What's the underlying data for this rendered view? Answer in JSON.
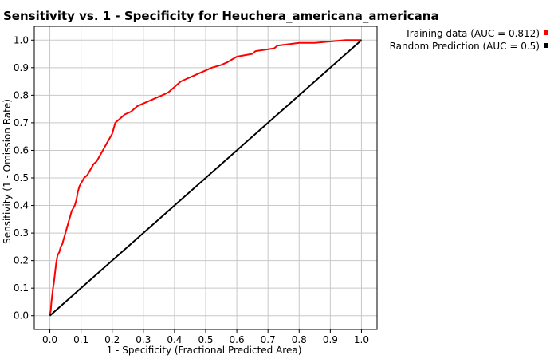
{
  "chart_data": {
    "type": "line",
    "title": "Sensitivity vs. 1 - Specificity for Heuchera_americana_americana",
    "xlabel": "1 - Specificity  (Fractional Predicted Area)",
    "ylabel": "Sensitivity  (1 - Omission Rate)",
    "xlim": [
      -0.05,
      1.05
    ],
    "ylim": [
      -0.05,
      1.05
    ],
    "xticks": [
      "0.0",
      "0.1",
      "0.2",
      "0.3",
      "0.4",
      "0.5",
      "0.6",
      "0.7",
      "0.8",
      "0.9",
      "1.0"
    ],
    "yticks": [
      "0.0",
      "0.1",
      "0.2",
      "0.3",
      "0.4",
      "0.5",
      "0.6",
      "0.7",
      "0.8",
      "0.9",
      "1.0"
    ],
    "grid": true,
    "legend_position": "top-right",
    "series": [
      {
        "name": "Training data (AUC = 0.812)",
        "color": "#ff0000",
        "points": [
          [
            0.0,
            0.0
          ],
          [
            0.003,
            0.02
          ],
          [
            0.005,
            0.05
          ],
          [
            0.008,
            0.08
          ],
          [
            0.01,
            0.1
          ],
          [
            0.013,
            0.12
          ],
          [
            0.015,
            0.14
          ],
          [
            0.018,
            0.17
          ],
          [
            0.02,
            0.19
          ],
          [
            0.025,
            0.22
          ],
          [
            0.03,
            0.23
          ],
          [
            0.035,
            0.25
          ],
          [
            0.04,
            0.26
          ],
          [
            0.045,
            0.28
          ],
          [
            0.05,
            0.3
          ],
          [
            0.055,
            0.32
          ],
          [
            0.06,
            0.34
          ],
          [
            0.065,
            0.36
          ],
          [
            0.07,
            0.38
          ],
          [
            0.075,
            0.39
          ],
          [
            0.08,
            0.4
          ],
          [
            0.085,
            0.42
          ],
          [
            0.09,
            0.45
          ],
          [
            0.095,
            0.47
          ],
          [
            0.1,
            0.48
          ],
          [
            0.11,
            0.5
          ],
          [
            0.12,
            0.51
          ],
          [
            0.13,
            0.53
          ],
          [
            0.14,
            0.55
          ],
          [
            0.15,
            0.56
          ],
          [
            0.16,
            0.58
          ],
          [
            0.17,
            0.6
          ],
          [
            0.18,
            0.62
          ],
          [
            0.19,
            0.64
          ],
          [
            0.2,
            0.66
          ],
          [
            0.205,
            0.68
          ],
          [
            0.21,
            0.7
          ],
          [
            0.22,
            0.71
          ],
          [
            0.23,
            0.72
          ],
          [
            0.24,
            0.73
          ],
          [
            0.26,
            0.74
          ],
          [
            0.28,
            0.76
          ],
          [
            0.3,
            0.77
          ],
          [
            0.32,
            0.78
          ],
          [
            0.34,
            0.79
          ],
          [
            0.36,
            0.8
          ],
          [
            0.38,
            0.81
          ],
          [
            0.4,
            0.83
          ],
          [
            0.42,
            0.85
          ],
          [
            0.44,
            0.86
          ],
          [
            0.46,
            0.87
          ],
          [
            0.48,
            0.88
          ],
          [
            0.5,
            0.89
          ],
          [
            0.52,
            0.9
          ],
          [
            0.55,
            0.91
          ],
          [
            0.57,
            0.92
          ],
          [
            0.6,
            0.94
          ],
          [
            0.65,
            0.95
          ],
          [
            0.66,
            0.96
          ],
          [
            0.72,
            0.97
          ],
          [
            0.73,
            0.98
          ],
          [
            0.8,
            0.99
          ],
          [
            0.85,
            0.99
          ],
          [
            0.9,
            0.995
          ],
          [
            0.95,
            1.0
          ],
          [
            1.0,
            1.0
          ]
        ]
      },
      {
        "name": "Random Prediction (AUC = 0.5)",
        "color": "#000000",
        "points": [
          [
            0.0,
            0.0
          ],
          [
            1.0,
            1.0
          ]
        ]
      }
    ]
  }
}
